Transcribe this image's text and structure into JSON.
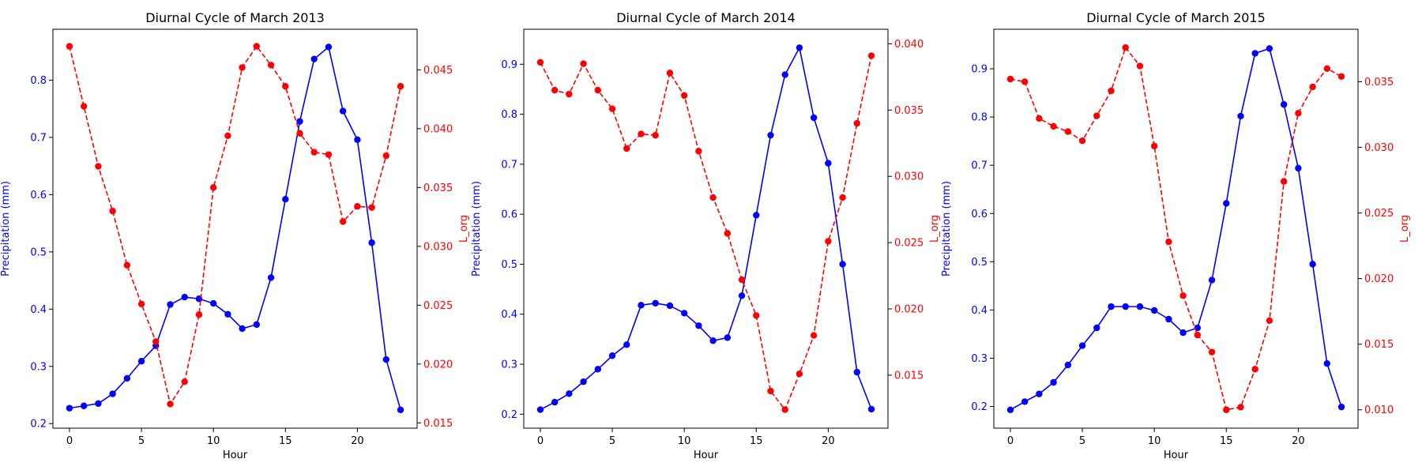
{
  "colors": {
    "precip": "#0000ff",
    "lorg": "#ff0000",
    "axis": "#000000"
  },
  "chart_data": [
    {
      "type": "line",
      "title": "Diurnal Cycle of March 2013",
      "xlabel": "Hour",
      "ylabel_left": "Precipitation (mm)",
      "ylabel_right": "L_org",
      "x": [
        0,
        1,
        2,
        3,
        4,
        5,
        6,
        7,
        8,
        9,
        10,
        11,
        12,
        13,
        14,
        15,
        16,
        17,
        18,
        19,
        20,
        21,
        22,
        23
      ],
      "xlim": [
        -1.15,
        24.15
      ],
      "xticks": [
        0,
        5,
        10,
        15,
        20
      ],
      "ylim_left": [
        0.192,
        0.889
      ],
      "yticks_left": [
        0.2,
        0.3,
        0.4,
        0.5,
        0.6,
        0.7,
        0.8
      ],
      "ylim_right": [
        0.01455,
        0.04845
      ],
      "yticks_right": [
        0.015,
        0.02,
        0.025,
        0.03,
        0.035,
        0.04,
        0.045
      ],
      "series": [
        {
          "name": "Precipitation (mm)",
          "axis": "left",
          "style": "solid",
          "values": [
            0.227,
            0.231,
            0.235,
            0.252,
            0.279,
            0.309,
            0.336,
            0.408,
            0.421,
            0.418,
            0.41,
            0.391,
            0.366,
            0.373,
            0.455,
            0.592,
            0.728,
            0.837,
            0.858,
            0.746,
            0.696,
            0.516,
            0.312,
            0.224
          ]
        },
        {
          "name": "L_org",
          "axis": "right",
          "style": "dashed",
          "values": [
            0.047,
            0.0419,
            0.0368,
            0.033,
            0.0284,
            0.0251,
            0.0219,
            0.0166,
            0.0185,
            0.0242,
            0.035,
            0.0394,
            0.0452,
            0.047,
            0.0454,
            0.0436,
            0.0396,
            0.038,
            0.0378,
            0.0321,
            0.0334,
            0.0333,
            0.0377,
            0.0436
          ]
        }
      ]
    },
    {
      "type": "line",
      "title": "Diurnal Cycle of March 2014",
      "xlabel": "Hour",
      "ylabel_left": "Precipitation (mm)",
      "ylabel_right": "L_org",
      "x": [
        0,
        1,
        2,
        3,
        4,
        5,
        6,
        7,
        8,
        9,
        10,
        11,
        12,
        13,
        14,
        15,
        16,
        17,
        18,
        19,
        20,
        21,
        22,
        23
      ],
      "xlim": [
        -1.15,
        24.15
      ],
      "xticks": [
        0,
        5,
        10,
        15,
        20
      ],
      "ylim_left": [
        0.172,
        0.97
      ],
      "yticks_left": [
        0.2,
        0.3,
        0.4,
        0.5,
        0.6,
        0.7,
        0.8,
        0.9
      ],
      "ylim_right": [
        0.011,
        0.0411
      ],
      "yticks_right": [
        0.015,
        0.02,
        0.025,
        0.03,
        0.035,
        0.04
      ],
      "series": [
        {
          "name": "Precipitation (mm)",
          "axis": "left",
          "style": "solid",
          "values": [
            0.209,
            0.224,
            0.241,
            0.265,
            0.29,
            0.317,
            0.339,
            0.418,
            0.422,
            0.417,
            0.402,
            0.377,
            0.347,
            0.353,
            0.437,
            0.598,
            0.758,
            0.879,
            0.933,
            0.793,
            0.702,
            0.5,
            0.284,
            0.21
          ]
        },
        {
          "name": "L_org",
          "axis": "right",
          "style": "dashed",
          "values": [
            0.0386,
            0.0365,
            0.0362,
            0.0385,
            0.0365,
            0.0351,
            0.0321,
            0.0332,
            0.0331,
            0.0378,
            0.0361,
            0.0319,
            0.0284,
            0.0257,
            0.0222,
            0.0195,
            0.0138,
            0.0124,
            0.0151,
            0.018,
            0.0251,
            0.0284,
            0.034,
            0.0391
          ]
        }
      ]
    },
    {
      "type": "line",
      "title": "Diurnal Cycle of March 2015",
      "xlabel": "Hour",
      "ylabel_left": "Precipitation (mm)",
      "ylabel_right": "L_org",
      "x": [
        0,
        1,
        2,
        3,
        4,
        5,
        6,
        7,
        8,
        9,
        10,
        11,
        12,
        13,
        14,
        15,
        16,
        17,
        18,
        19,
        20,
        21,
        22,
        23
      ],
      "xlim": [
        -1.15,
        24.15
      ],
      "xticks": [
        0,
        5,
        10,
        15,
        20
      ],
      "ylim_left": [
        0.155,
        0.982
      ],
      "yticks_left": [
        0.2,
        0.3,
        0.4,
        0.5,
        0.6,
        0.7,
        0.8,
        0.9
      ],
      "ylim_right": [
        0.0086,
        0.039
      ],
      "yticks_right": [
        0.01,
        0.015,
        0.02,
        0.025,
        0.03,
        0.035
      ],
      "series": [
        {
          "name": "Precipitation (mm)",
          "axis": "left",
          "style": "solid",
          "values": [
            0.193,
            0.21,
            0.226,
            0.25,
            0.286,
            0.326,
            0.363,
            0.407,
            0.407,
            0.407,
            0.399,
            0.381,
            0.353,
            0.363,
            0.462,
            0.621,
            0.802,
            0.932,
            0.942,
            0.826,
            0.694,
            0.495,
            0.289,
            0.199
          ]
        },
        {
          "name": "L_org",
          "axis": "right",
          "style": "dashed",
          "values": [
            0.0352,
            0.035,
            0.0322,
            0.0316,
            0.0312,
            0.0305,
            0.0324,
            0.0343,
            0.0376,
            0.0362,
            0.0301,
            0.0228,
            0.0187,
            0.0157,
            0.0144,
            0.01,
            0.0102,
            0.0131,
            0.0168,
            0.0274,
            0.0326,
            0.0346,
            0.036,
            0.0354
          ]
        }
      ]
    }
  ]
}
